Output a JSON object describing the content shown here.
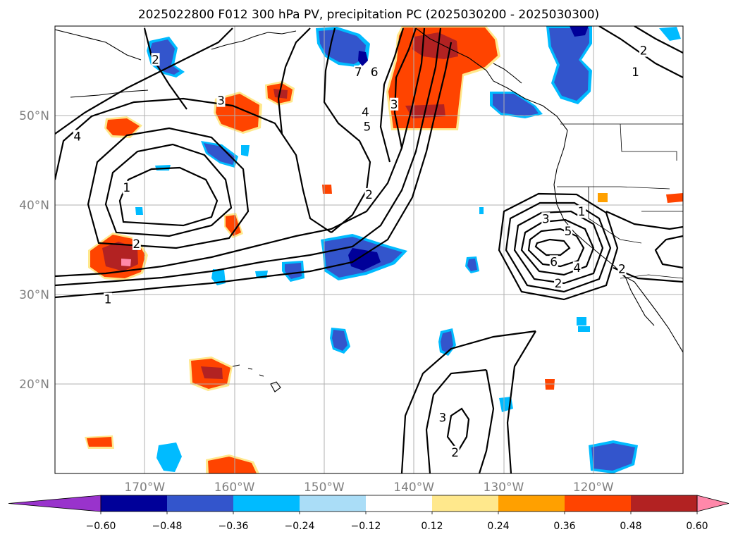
{
  "title": "2025022800 F012 300 hPa PV, precipitation PC (2025030200 - 2025030300)",
  "map": {
    "lon_range": [
      -180,
      -110
    ],
    "lat_range": [
      10,
      60
    ],
    "lon_ticks": [
      {
        "value": -170,
        "label": "170°W"
      },
      {
        "value": -160,
        "label": "160°W"
      },
      {
        "value": -150,
        "label": "150°W"
      },
      {
        "value": -140,
        "label": "140°W"
      },
      {
        "value": -130,
        "label": "130°W"
      },
      {
        "value": -120,
        "label": "120°W"
      }
    ],
    "lat_ticks": [
      {
        "value": 20,
        "label": "20°N"
      },
      {
        "value": 30,
        "label": "30°N"
      },
      {
        "value": 40,
        "label": "40°N"
      },
      {
        "value": 50,
        "label": "50°N"
      }
    ]
  },
  "colorbar": {
    "ticks": [
      "−0.60",
      "−0.48",
      "−0.36",
      "−0.24",
      "−0.12",
      "0.12",
      "0.24",
      "0.36",
      "0.48",
      "0.60"
    ],
    "colors": [
      "#9933cc",
      "#000099",
      "#3355cc",
      "#00bbff",
      "#aaddf7",
      "#ffffff",
      "#ffe88c",
      "#ffa000",
      "#ff4400",
      "#b22222",
      "#ff88aa"
    ]
  },
  "contour_labels": [
    {
      "text": "1",
      "lon": -172,
      "lat": 41.9
    },
    {
      "text": "2",
      "lon": -170.9,
      "lat": 35.6
    },
    {
      "text": "1",
      "lon": -174.1,
      "lat": 29.4
    },
    {
      "text": "4",
      "lon": -177.5,
      "lat": 47.6
    },
    {
      "text": "2",
      "lon": -168.8,
      "lat": 56.2
    },
    {
      "text": "3",
      "lon": -161.5,
      "lat": 51.6
    },
    {
      "text": "2",
      "lon": -145,
      "lat": 41.1
    },
    {
      "text": "5",
      "lon": -145.2,
      "lat": 48.7
    },
    {
      "text": "4",
      "lon": -145.4,
      "lat": 50.3
    },
    {
      "text": "3",
      "lon": -142.2,
      "lat": 51.2
    },
    {
      "text": "6",
      "lon": -144.4,
      "lat": 54.8
    },
    {
      "text": "7",
      "lon": -146.2,
      "lat": 54.8
    },
    {
      "text": "2",
      "lon": -114.4,
      "lat": 57.2
    },
    {
      "text": "1",
      "lon": -115.3,
      "lat": 54.8
    },
    {
      "text": "3",
      "lon": -125.3,
      "lat": 38.4
    },
    {
      "text": "5",
      "lon": -122.8,
      "lat": 37.0
    },
    {
      "text": "6",
      "lon": -124.4,
      "lat": 33.6
    },
    {
      "text": "4",
      "lon": -121.8,
      "lat": 32.9
    },
    {
      "text": "2",
      "lon": -123.9,
      "lat": 31.2
    },
    {
      "text": "1",
      "lon": -121.3,
      "lat": 39.2
    },
    {
      "text": "2",
      "lon": -116.8,
      "lat": 32.8
    },
    {
      "text": "3",
      "lon": -136.8,
      "lat": 16.2
    },
    {
      "text": "2",
      "lon": -135.4,
      "lat": 12.3
    }
  ]
}
